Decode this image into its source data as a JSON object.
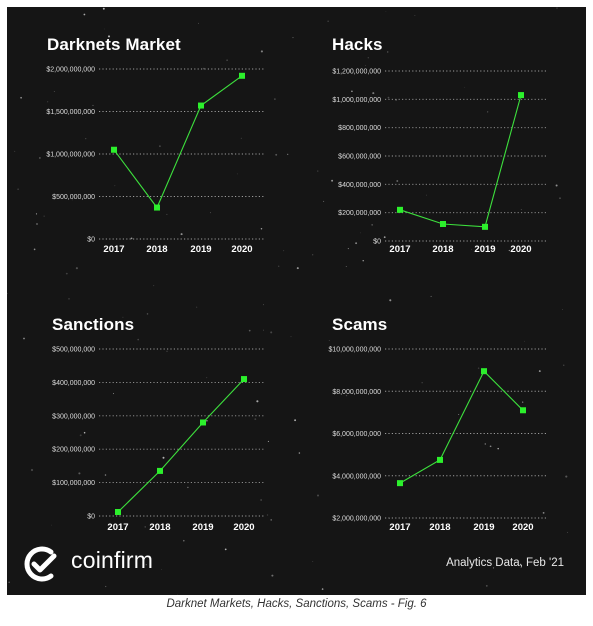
{
  "brand": {
    "name": "coinfirm",
    "icon": "coinfirm-logo-icon"
  },
  "source_note": "Analytics Data, Feb '21",
  "caption": "Darknet Markets, Hacks, Sanctions, Scams - Fig. 6",
  "colors": {
    "background": "#151515",
    "line": "#3de03d",
    "marker": "#2cf02c",
    "grid": "#9a9a9a",
    "text": "#ffffff"
  },
  "chart_data": [
    {
      "type": "line",
      "title": "Darknets Market",
      "categories": [
        "2017",
        "2018",
        "2019",
        "2020"
      ],
      "values": [
        1050000000,
        370000000,
        1570000000,
        1920000000
      ],
      "ylim": [
        0,
        2000000000
      ],
      "yticks": [
        0,
        500000000,
        1000000000,
        1500000000,
        2000000000
      ],
      "ytick_labels": [
        "$0",
        "$500,000,000",
        "$1,000,000,000",
        "$1,500,000,000",
        "$2,000,000,000"
      ],
      "grid": true
    },
    {
      "type": "line",
      "title": "Hacks",
      "categories": [
        "2017",
        "2018",
        "2019",
        "2020"
      ],
      "values": [
        220000000,
        120000000,
        100000000,
        1030000000
      ],
      "ylim": [
        0,
        1200000000
      ],
      "yticks": [
        0,
        200000000,
        400000000,
        600000000,
        800000000,
        1000000000,
        1200000000
      ],
      "ytick_labels": [
        "$0",
        "$200,000,000",
        "$400,000,000",
        "$600,000,000",
        "$800,000,000",
        "$1,000,000,000",
        "$1,200,000,000"
      ],
      "grid": true
    },
    {
      "type": "line",
      "title": "Sanctions",
      "categories": [
        "2017",
        "2018",
        "2019",
        "2020"
      ],
      "values": [
        12000000,
        135000000,
        280000000,
        410000000
      ],
      "ylim": [
        0,
        500000000
      ],
      "yticks": [
        0,
        100000000,
        200000000,
        300000000,
        400000000,
        500000000
      ],
      "ytick_labels": [
        "$0",
        "$100,000,000",
        "$200,000,000",
        "$300,000,000",
        "$400,000,000",
        "$500,000,000"
      ],
      "grid": true
    },
    {
      "type": "line",
      "title": "Scams",
      "categories": [
        "2017",
        "2018",
        "2019",
        "2020"
      ],
      "values": [
        3650000000,
        4750000000,
        8950000000,
        7100000000
      ],
      "ylim": [
        2000000000,
        10000000000
      ],
      "yticks": [
        2000000000,
        4000000000,
        6000000000,
        8000000000,
        10000000000
      ],
      "ytick_labels": [
        "$2,000,000,000",
        "$4,000,000,000",
        "$6,000,000,000",
        "$8,000,000,000",
        "$10,000,000,000"
      ],
      "grid": true
    }
  ]
}
